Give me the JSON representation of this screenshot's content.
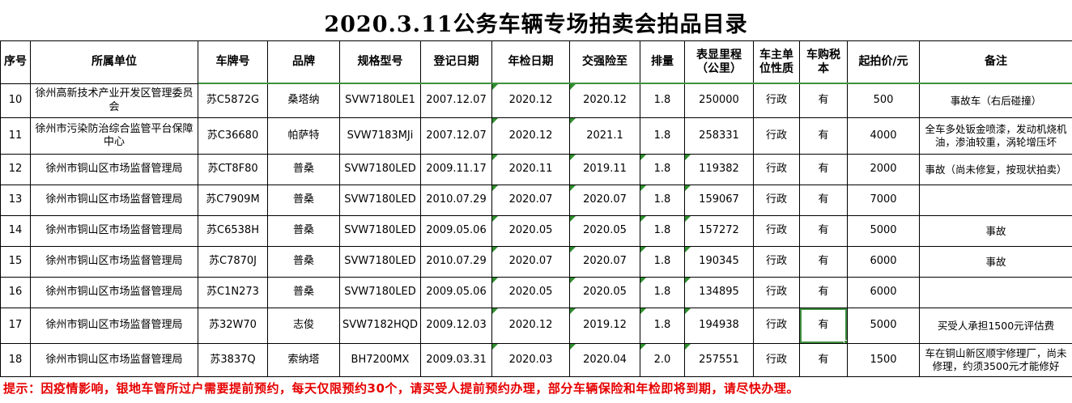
{
  "title": "2020.3.11公务车辆专场拍卖会拍品目录",
  "footer_note": "提示：因疫情影响，银地车管所过户需要提前预约，每天仅限预约30个，请买受人提前预约办理，部分车辆保险和年检即将到期，请尽快办理。",
  "colors": {
    "grid": "#000000",
    "note_red": "#e60000",
    "selection_green": "#3f9140",
    "triangle_green": "#2f8f2f"
  },
  "selection": {
    "row_label": "17",
    "column_label": "车购税本",
    "value": "有"
  },
  "table": {
    "headers": [
      "序号",
      "所属单位",
      "车牌号",
      "品牌",
      "规格型号",
      "登记日期",
      "年检日期",
      "交强险至",
      "排量",
      "表显里程（公里）",
      "车主单位性质",
      "车购税本",
      "起拍价/元",
      "备注"
    ],
    "column_keys": [
      "seq",
      "unit",
      "plate",
      "brand",
      "model",
      "reg-date",
      "inspection-date",
      "insurance-until",
      "displacement",
      "mileage",
      "owner-type",
      "tax-book",
      "start-price",
      "remarks"
    ],
    "rows": [
      {
        "cells": [
          "10",
          "徐州高新技术产业开发区管理委员会",
          "苏C5872G",
          "桑塔纳",
          "SVW7180LE1",
          "2007.12.07",
          "2020.12",
          "2020.12",
          "1.8",
          "250000",
          "行政",
          "有",
          "500",
          "事故车（右后碰撞）"
        ],
        "green_marks": [
          6,
          7
        ]
      },
      {
        "cells": [
          "11",
          "徐州市污染防治综合监管平台保障中心",
          "苏C36680",
          "帕萨特",
          "SVW7183MJi",
          "2007.12.07",
          "2020.12",
          "2021.1",
          "1.8",
          "258331",
          "行政",
          "有",
          "4000",
          "全车多处钣金喷漆，发动机烧机油，渗油较重，涡轮增压坏"
        ],
        "green_marks": [
          6,
          7
        ]
      },
      {
        "cells": [
          "12",
          "徐州市铜山区市场监督管理局",
          "苏CT8F80",
          "普桑",
          "SVW7180LED",
          "2009.11.17",
          "2020.11",
          "2019.11",
          "1.8",
          "119382",
          "行政",
          "有",
          "2000",
          "事故（尚未修复，按现状拍卖）"
        ],
        "green_marks": [
          6,
          7,
          8,
          9
        ]
      },
      {
        "cells": [
          "13",
          "徐州市铜山区市场监督管理局",
          "苏C7909M",
          "普桑",
          "SVW7180LED",
          "2010.07.29",
          "2020.07",
          "2020.07",
          "1.8",
          "159067",
          "行政",
          "有",
          "7000",
          ""
        ],
        "green_marks": [
          6,
          7,
          8,
          9
        ]
      },
      {
        "cells": [
          "14",
          "徐州市铜山区市场监督管理局",
          "苏C6538H",
          "普桑",
          "SVW7180LED",
          "2009.05.06",
          "2020.05",
          "2020.05",
          "1.8",
          "157272",
          "行政",
          "有",
          "5000",
          "事故"
        ],
        "green_marks": [
          6,
          7,
          8,
          9
        ]
      },
      {
        "cells": [
          "15",
          "徐州市铜山区市场监督管理局",
          "苏C7870J",
          "普桑",
          "SVW7180LED",
          "2010.07.29",
          "2020.07",
          "2020.07",
          "1.8",
          "190345",
          "行政",
          "有",
          "6000",
          "事故"
        ],
        "green_marks": [
          6,
          7,
          8,
          9
        ]
      },
      {
        "cells": [
          "16",
          "徐州市铜山区市场监督管理局",
          "苏C1N273",
          "普桑",
          "SVW7180LED",
          "2009.05.06",
          "2020.05",
          "2020.05",
          "1.8",
          "134895",
          "行政",
          "有",
          "6000",
          ""
        ],
        "green_marks": [
          6,
          7,
          8,
          9
        ]
      },
      {
        "cells": [
          "17",
          "徐州市铜山区市场监督管理局",
          "苏32W70",
          "志俊",
          "SVW7182HQD",
          "2009.12.03",
          "2020.12",
          "2019.12",
          "1.8",
          "194938",
          "行政",
          "有",
          "5000",
          "买受人承担1500元评估费"
        ],
        "green_marks": [
          6,
          7,
          8,
          9
        ],
        "selected_cell": 11
      },
      {
        "cells": [
          "18",
          "徐州市铜山区市场监督管理局",
          "苏3837Q",
          "索纳塔",
          "BH7200MX",
          "2009.03.31",
          "2020.03",
          "2020.04",
          "2.0",
          "257551",
          "行政",
          "有",
          "1500",
          "车在铜山新区顺宇修理厂，尚未修理，约须3500元才能修好"
        ],
        "green_marks": [
          6,
          7,
          8,
          9
        ]
      }
    ]
  }
}
